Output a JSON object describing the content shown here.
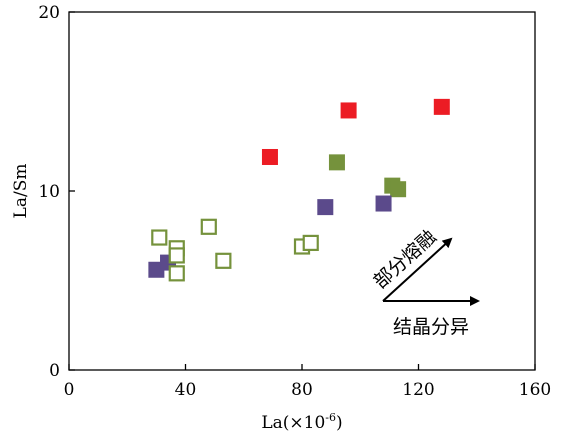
{
  "chart_data": {
    "type": "scatter",
    "title": "",
    "xlabel_base": "La(×10",
    "xlabel_exp": "-6",
    "xlabel_close": ")",
    "ylabel": "La/Sm",
    "xlim": [
      0,
      160
    ],
    "ylim": [
      0,
      20
    ],
    "x_ticks": [
      0,
      40,
      80,
      120,
      160
    ],
    "y_ticks": [
      0,
      10,
      20
    ],
    "grid": false,
    "series": [
      {
        "marker": "filled-square",
        "color": "#ec1c24",
        "points": [
          [
            69,
            11.9
          ],
          [
            96,
            14.5
          ],
          [
            128,
            14.7
          ]
        ]
      },
      {
        "marker": "filled-square",
        "color": "#75923c",
        "points": [
          [
            92,
            11.6
          ],
          [
            111,
            10.3
          ],
          [
            113,
            10.1
          ]
        ]
      },
      {
        "marker": "filled-square",
        "color": "#5b4a8b",
        "points": [
          [
            30,
            5.6
          ],
          [
            34,
            6.0
          ],
          [
            88,
            9.1
          ],
          [
            108,
            9.3
          ]
        ]
      },
      {
        "marker": "open-square",
        "color": "#75923c",
        "points": [
          [
            31,
            7.4
          ],
          [
            37,
            6.8
          ],
          [
            37,
            6.4
          ],
          [
            37,
            5.4
          ],
          [
            48,
            8.0
          ],
          [
            53,
            6.1
          ],
          [
            80,
            6.9
          ],
          [
            83,
            7.1
          ]
        ]
      }
    ],
    "annotations": [
      {
        "text": "部分熔融",
        "kind": "arrow-diagonal"
      },
      {
        "text": "结晶分异",
        "kind": "arrow-horizontal"
      }
    ]
  },
  "colors": {
    "axis": "#000000",
    "red": "#ec1c24",
    "green": "#75923c",
    "purple": "#5b4a8b"
  }
}
